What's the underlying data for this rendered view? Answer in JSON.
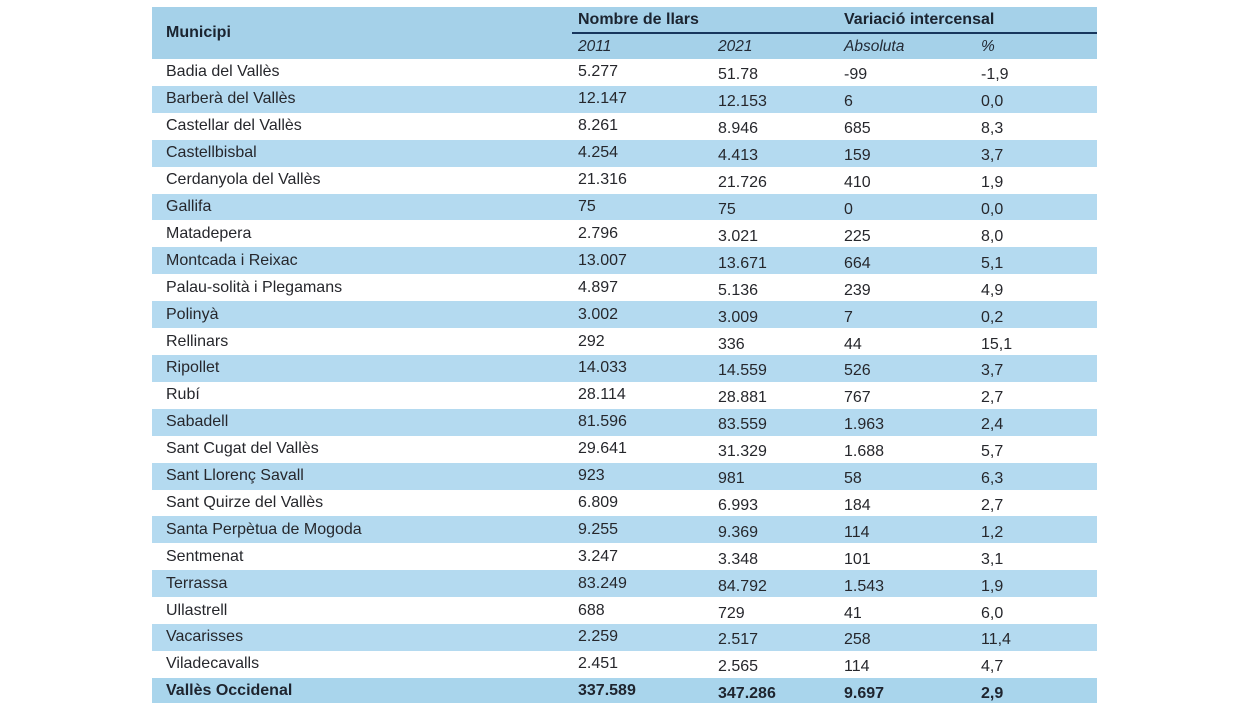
{
  "table": {
    "header": {
      "municipi": "Municipi",
      "group_llars": "Nombre de llars",
      "group_variacio": "Variació intercensal",
      "sub_2011": "2011",
      "sub_2021": "2021",
      "sub_absoluta": "Absoluta",
      "sub_pct": "%"
    },
    "rows": [
      {
        "name": "Badia del Vallès",
        "llars_2011": "5.277",
        "llars_2021": "51.78",
        "variacio_absoluta": "-99",
        "variacio_pct": "-1,9"
      },
      {
        "name": "Barberà del Vallès",
        "llars_2011": "12.147",
        "llars_2021": "12.153",
        "variacio_absoluta": "6",
        "variacio_pct": "0,0"
      },
      {
        "name": "Castellar del Vallès",
        "llars_2011": "8.261",
        "llars_2021": "8.946",
        "variacio_absoluta": "685",
        "variacio_pct": "8,3"
      },
      {
        "name": "Castellbisbal",
        "llars_2011": "4.254",
        "llars_2021": "4.413",
        "variacio_absoluta": "159",
        "variacio_pct": "3,7"
      },
      {
        "name": "Cerdanyola del Vallès",
        "llars_2011": "21.316",
        "llars_2021": "21.726",
        "variacio_absoluta": "410",
        "variacio_pct": "1,9"
      },
      {
        "name": "Gallifa",
        "llars_2011": "75",
        "llars_2021": "75",
        "variacio_absoluta": "0",
        "variacio_pct": "0,0"
      },
      {
        "name": "Matadepera",
        "llars_2011": "2.796",
        "llars_2021": "3.021",
        "variacio_absoluta": "225",
        "variacio_pct": "8,0"
      },
      {
        "name": "Montcada i Reixac",
        "llars_2011": "13.007",
        "llars_2021": "13.671",
        "variacio_absoluta": "664",
        "variacio_pct": "5,1"
      },
      {
        "name": "Palau-solità i Plegamans",
        "llars_2011": "4.897",
        "llars_2021": "5.136",
        "variacio_absoluta": "239",
        "variacio_pct": "4,9"
      },
      {
        "name": "Polinyà",
        "llars_2011": "3.002",
        "llars_2021": "3.009",
        "variacio_absoluta": "7",
        "variacio_pct": "0,2"
      },
      {
        "name": "Rellinars",
        "llars_2011": "292",
        "llars_2021": "336",
        "variacio_absoluta": "44",
        "variacio_pct": "15,1"
      },
      {
        "name": "Ripollet",
        "llars_2011": "14.033",
        "llars_2021": "14.559",
        "variacio_absoluta": "526",
        "variacio_pct": "3,7"
      },
      {
        "name": "Rubí",
        "llars_2011": "28.114",
        "llars_2021": "28.881",
        "variacio_absoluta": "767",
        "variacio_pct": "2,7"
      },
      {
        "name": "Sabadell",
        "llars_2011": "81.596",
        "llars_2021": "83.559",
        "variacio_absoluta": "1.963",
        "variacio_pct": "2,4"
      },
      {
        "name": "Sant Cugat del Vallès",
        "llars_2011": "29.641",
        "llars_2021": "31.329",
        "variacio_absoluta": "1.688",
        "variacio_pct": "5,7"
      },
      {
        "name": "Sant Llorenç Savall",
        "llars_2011": "923",
        "llars_2021": "981",
        "variacio_absoluta": "58",
        "variacio_pct": "6,3"
      },
      {
        "name": "Sant Quirze del Vallès",
        "llars_2011": "6.809",
        "llars_2021": "6.993",
        "variacio_absoluta": "184",
        "variacio_pct": "2,7"
      },
      {
        "name": "Santa Perpètua de Mogoda",
        "llars_2011": "9.255",
        "llars_2021": "9.369",
        "variacio_absoluta": "114",
        "variacio_pct": "1,2"
      },
      {
        "name": "Sentmenat",
        "llars_2011": "3.247",
        "llars_2021": "3.348",
        "variacio_absoluta": "101",
        "variacio_pct": "3,1"
      },
      {
        "name": "Terrassa",
        "llars_2011": "83.249",
        "llars_2021": "84.792",
        "variacio_absoluta": "1.543",
        "variacio_pct": "1,9"
      },
      {
        "name": "Ullastrell",
        "llars_2011": "688",
        "llars_2021": "729",
        "variacio_absoluta": "41",
        "variacio_pct": "6,0"
      },
      {
        "name": "Vacarisses",
        "llars_2011": "2.259",
        "llars_2021": "2.517",
        "variacio_absoluta": "258",
        "variacio_pct": "11,4"
      },
      {
        "name": "Viladecavalls",
        "llars_2011": "2.451",
        "llars_2021": "2.565",
        "variacio_absoluta": "114",
        "variacio_pct": "4,7"
      }
    ],
    "total_row": {
      "name": "Vallès Occidenal",
      "llars_2011": "337.589",
      "llars_2021": "347.286",
      "variacio_absoluta": "9.697",
      "variacio_pct": "2,9"
    }
  },
  "colors": {
    "header_bg": "#a5d1e9",
    "row_stripe_bg": "#b4daf0",
    "total_row_bg": "#a9d5ec",
    "header_rule": "#17365d",
    "text": "#26272c"
  }
}
